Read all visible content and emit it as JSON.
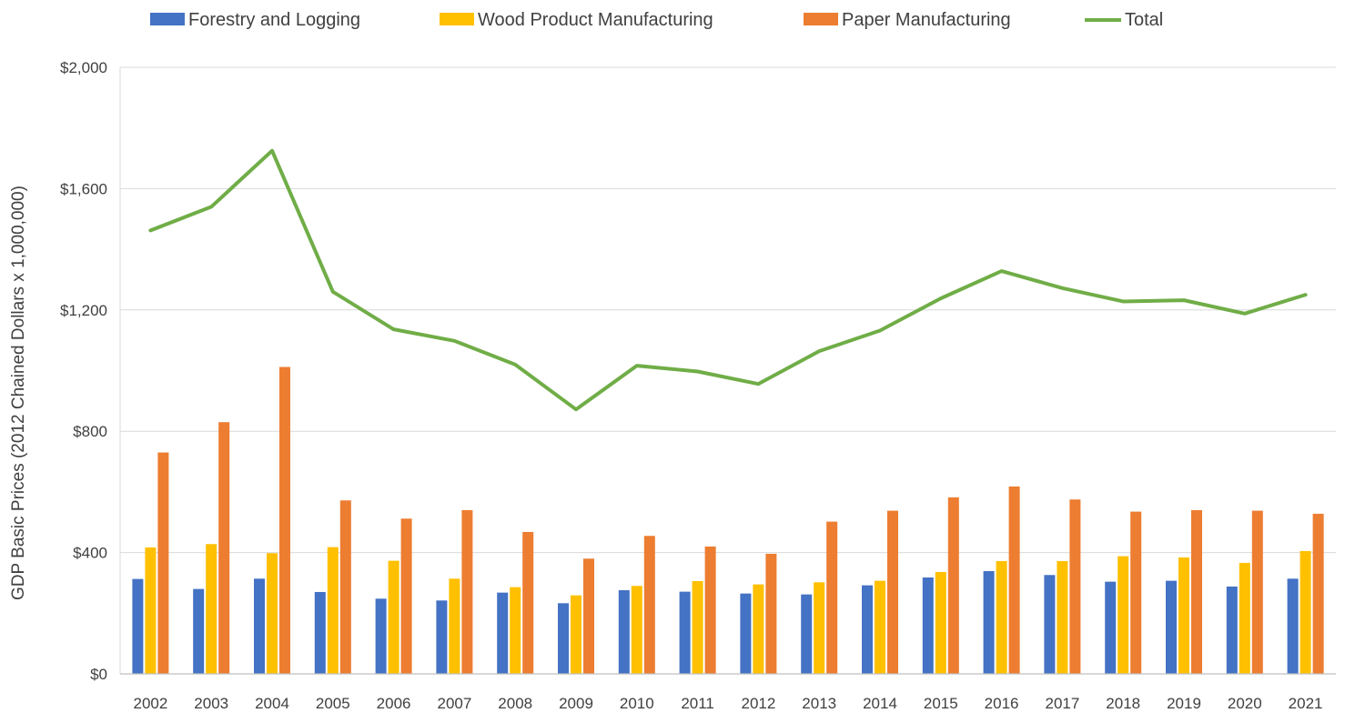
{
  "chart_data": {
    "type": "bar",
    "title": "",
    "xlabel": "",
    "ylabel": "GDP Basic Prices (2012 Chained Dollars x 1,000,000)",
    "ylim": [
      0,
      2000
    ],
    "yticks": [
      0,
      400,
      800,
      1200,
      1600,
      2000
    ],
    "ytick_labels": [
      "$0",
      "$400",
      "$800",
      "$1,200",
      "$1,600",
      "$2,000"
    ],
    "grid": true,
    "legend_position": "top",
    "categories": [
      "2002",
      "2003",
      "2004",
      "2005",
      "2006",
      "2007",
      "2008",
      "2009",
      "2010",
      "2011",
      "2012",
      "2013",
      "2014",
      "2015",
      "2016",
      "2017",
      "2018",
      "2019",
      "2020",
      "2021"
    ],
    "series": [
      {
        "name": "Forestry and Logging",
        "kind": "bar",
        "color": "#4472c4",
        "values": [
          313,
          280,
          314,
          270,
          248,
          242,
          268,
          233,
          276,
          271,
          265,
          262,
          292,
          318,
          339,
          326,
          304,
          307,
          288,
          314
        ]
      },
      {
        "name": "Wood Product Manufacturing",
        "kind": "bar",
        "color": "#ffc000",
        "values": [
          417,
          428,
          398,
          418,
          373,
          314,
          286,
          259,
          290,
          306,
          295,
          302,
          307,
          336,
          372,
          372,
          388,
          384,
          366,
          405
        ]
      },
      {
        "name": "Paper Manufacturing",
        "kind": "bar",
        "color": "#ed7d31",
        "values": [
          730,
          830,
          1012,
          572,
          512,
          540,
          468,
          380,
          455,
          420,
          396,
          502,
          538,
          582,
          618,
          575,
          535,
          540,
          538,
          528
        ]
      },
      {
        "name": "Total",
        "kind": "line",
        "color": "#70ad47",
        "values": [
          1462,
          1540,
          1725,
          1260,
          1136,
          1098,
          1020,
          872,
          1016,
          997,
          956,
          1064,
          1132,
          1238,
          1328,
          1272,
          1228,
          1232,
          1188,
          1250
        ]
      }
    ]
  }
}
